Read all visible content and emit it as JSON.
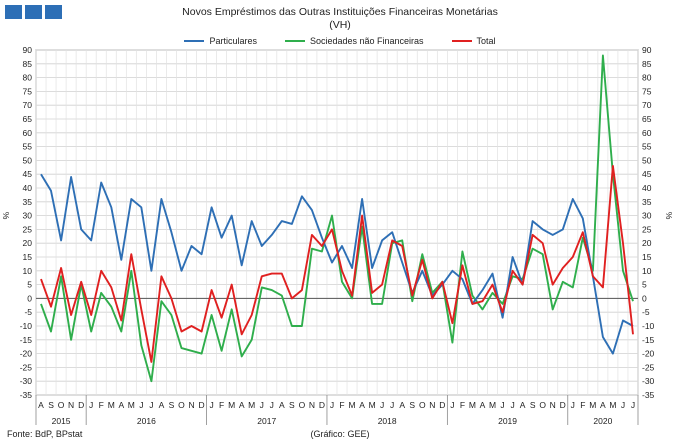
{
  "logo": {
    "blocks": 3,
    "color": "#2d6fb6"
  },
  "footer": {
    "source": "Fonte: BdP, BPstat",
    "credit": "(Gráfico: GEE)"
  },
  "chart_data": {
    "type": "line",
    "title": "Novos Empréstimos das Outras Instituições Financeiras Monetárias",
    "subtitle": "(VH)",
    "ylabel_left": "%",
    "ylabel_right": "%",
    "ylim": [
      -35,
      90
    ],
    "yticks": [
      90,
      85,
      80,
      75,
      70,
      65,
      60,
      55,
      50,
      45,
      40,
      35,
      30,
      25,
      20,
      15,
      10,
      5,
      0,
      -5,
      -10,
      -15,
      -20,
      -25,
      -30,
      -35
    ],
    "grid": true,
    "legend_position": "top",
    "x_months": [
      "A",
      "S",
      "O",
      "N",
      "D",
      "J",
      "F",
      "M",
      "A",
      "M",
      "J",
      "J",
      "A",
      "S",
      "O",
      "N",
      "D",
      "J",
      "F",
      "M",
      "A",
      "M",
      "J",
      "J",
      "A",
      "S",
      "O",
      "N",
      "D",
      "J",
      "F",
      "M",
      "A",
      "M",
      "J",
      "J",
      "A",
      "S",
      "O",
      "N",
      "D",
      "J",
      "F",
      "M",
      "A",
      "M",
      "J",
      "J",
      "A",
      "S",
      "O",
      "N",
      "D",
      "J",
      "F",
      "M",
      "A",
      "M",
      "J",
      "J"
    ],
    "years": [
      {
        "label": "2015",
        "start": 0,
        "end": 4
      },
      {
        "label": "2016",
        "start": 5,
        "end": 16
      },
      {
        "label": "2017",
        "start": 17,
        "end": 28
      },
      {
        "label": "2018",
        "start": 29,
        "end": 40
      },
      {
        "label": "2019",
        "start": 41,
        "end": 52
      },
      {
        "label": "2020",
        "start": 53,
        "end": 59
      }
    ],
    "series": [
      {
        "name": "Particulares",
        "color": "#2e6fb5",
        "values": [
          45,
          39,
          21,
          44,
          25,
          21,
          42,
          33,
          14,
          36,
          33,
          10,
          36,
          24,
          10,
          19,
          16,
          33,
          22,
          30,
          12,
          28,
          19,
          23,
          28,
          27,
          37,
          32,
          22,
          13,
          19,
          11,
          36,
          11,
          21,
          24,
          13,
          2,
          10,
          1,
          5,
          10,
          7,
          -2,
          3,
          9,
          -7,
          15,
          5,
          28,
          25,
          23,
          25,
          36,
          29,
          8,
          -14,
          -20,
          -8,
          -10
        ]
      },
      {
        "name": "Sociedades não Financeiras",
        "color": "#2fae4c",
        "values": [
          -2,
          -12,
          8,
          -15,
          5,
          -12,
          2,
          -3,
          -12,
          10,
          -17,
          -30,
          -1,
          -6,
          -18,
          -19,
          -20,
          -6,
          -19,
          -4,
          -21,
          -15,
          4,
          3,
          1,
          -10,
          -10,
          18,
          17,
          30,
          6,
          0,
          26,
          -2,
          -2,
          20,
          21,
          -1,
          16,
          2,
          6,
          -16,
          17,
          1,
          -4,
          2,
          -2,
          8,
          7,
          18,
          16,
          -4,
          6,
          4,
          22,
          10,
          88,
          45,
          10,
          -1
        ]
      },
      {
        "name": "Total",
        "color": "#e02020",
        "values": [
          7,
          -3,
          11,
          -6,
          6,
          -6,
          10,
          4,
          -8,
          16,
          -4,
          -23,
          8,
          0,
          -12,
          -10,
          -12,
          3,
          -7,
          5,
          -13,
          -6,
          8,
          9,
          9,
          0,
          3,
          23,
          19,
          25,
          10,
          1,
          30,
          2,
          5,
          21,
          19,
          1,
          14,
          0,
          6,
          -9,
          12,
          -2,
          -1,
          5,
          -5,
          10,
          5,
          23,
          20,
          5,
          11,
          15,
          24,
          8,
          4,
          48,
          20,
          -13
        ]
      }
    ]
  }
}
